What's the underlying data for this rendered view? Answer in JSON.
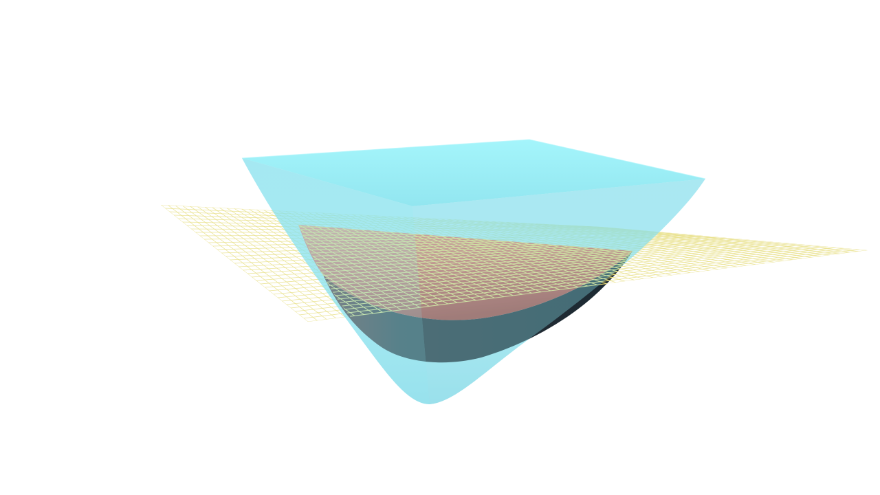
{
  "scene": {
    "background": "#ffffff",
    "objects": [
      {
        "id": "plane-grid",
        "kind": "wireframe-plane",
        "color": "#e8df86",
        "opacity": 0.85
      },
      {
        "id": "upper-surface",
        "kind": "translucent-surface",
        "color": "#8eeef8",
        "opacity": 0.6
      },
      {
        "id": "lower-surface",
        "kind": "shaded-surface",
        "color_top": "#ec7e72",
        "color_mid": "#c75a4e",
        "color_shadow": "#1e2a33"
      }
    ]
  }
}
